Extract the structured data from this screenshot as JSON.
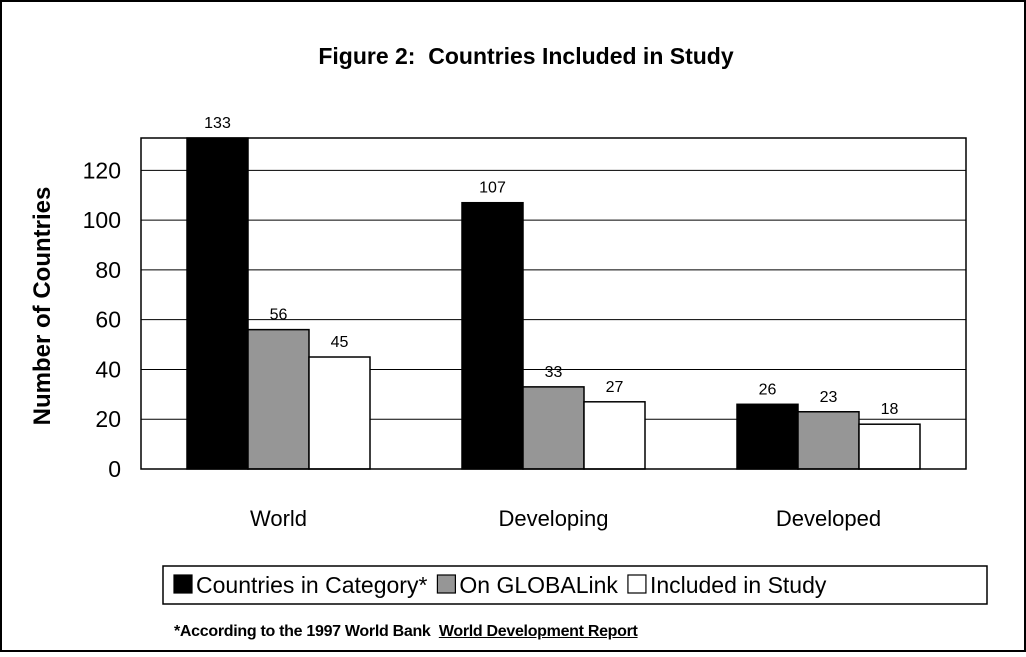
{
  "chart_data": {
    "type": "bar",
    "title": "Figure 2:  Countries Included in Study",
    "xlabel": "",
    "ylabel": "Number of Countries",
    "categories": [
      "World",
      "Developing",
      "Developed"
    ],
    "ylim": [
      0,
      133
    ],
    "yticks": [
      0,
      20,
      40,
      60,
      80,
      100,
      120
    ],
    "grid": true,
    "legend_position": "bottom",
    "series": [
      {
        "name": "Countries in Category*",
        "values": [
          133,
          107,
          26
        ],
        "color": "#000000"
      },
      {
        "name": "On GLOBALink",
        "values": [
          56,
          33,
          23
        ],
        "color": "#969696"
      },
      {
        "name": "Included in Study",
        "values": [
          45,
          27,
          18
        ],
        "color": "#ffffff"
      }
    ]
  },
  "footnote": {
    "prefix": "*According to the 1997 World Bank",
    "source": "World Development Report"
  }
}
